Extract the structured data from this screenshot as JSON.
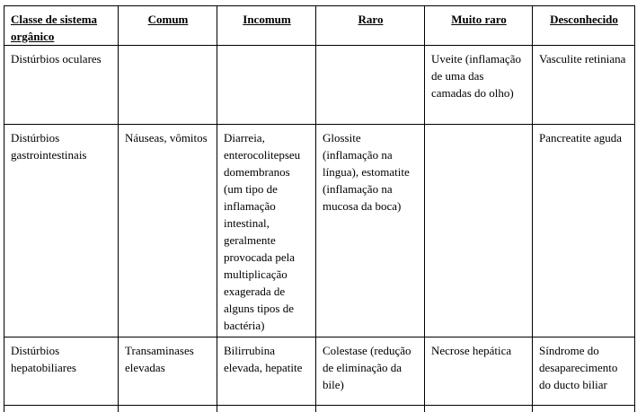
{
  "table": {
    "headers": [
      "Classe de sistema orgânico",
      "Comum",
      "Incomum",
      "Raro",
      "Muito raro",
      "Desconhecido"
    ],
    "rows": [
      [
        "Distúrbios oculares",
        "",
        "",
        "",
        "Uveite (inflamação de uma das camadas do olho)",
        "Vasculite retiniana"
      ],
      [
        "Distúrbios gastrointestinais",
        "Náuseas, vômitos",
        "Diarreia, enterocolitepseu domembranos (um tipo de inflamação intestinal, geralmente provocada pela multiplicação exagerada de alguns tipos de bactéria)",
        "Glossite (inflamação na língua), estomatite (inflamação na mucosa da boca)",
        "",
        "Pancreatite aguda"
      ],
      [
        "Distúrbios hepatobiliares",
        "Transaminases elevadas",
        "Bilirrubina elevada, hepatite",
        "Colestase (redução de eliminação da bile)",
        "Necrose hepática",
        "Síndrome do desaparecimento do ducto biliar"
      ]
    ]
  }
}
